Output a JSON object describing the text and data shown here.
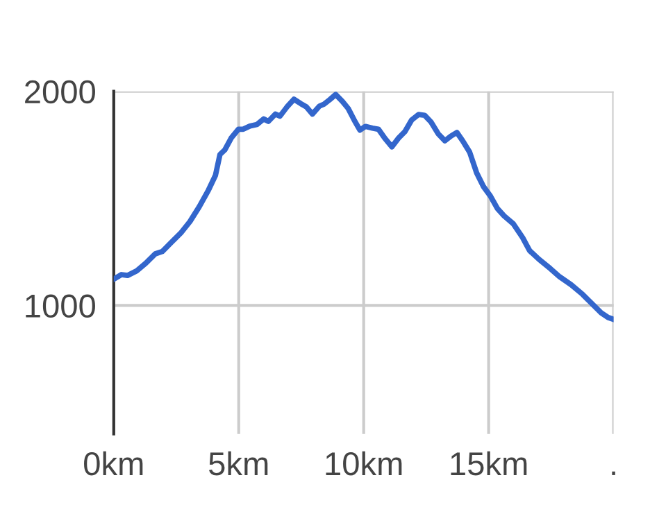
{
  "chart_data": {
    "type": "line",
    "x": [
      0,
      0.31,
      0.55,
      0.92,
      1.29,
      1.66,
      1.94,
      2.31,
      2.68,
      3.05,
      3.42,
      3.79,
      4.07,
      4.25,
      4.44,
      4.71,
      4.99,
      5.18,
      5.45,
      5.73,
      6.0,
      6.19,
      6.47,
      6.65,
      6.93,
      7.21,
      7.49,
      7.71,
      7.95,
      8.23,
      8.41,
      8.64,
      8.88,
      9.15,
      9.38,
      9.62,
      9.85,
      10.07,
      10.35,
      10.59,
      10.85,
      11.13,
      11.41,
      11.65,
      11.92,
      12.2,
      12.44,
      12.7,
      12.98,
      13.25,
      13.49,
      13.73,
      13.96,
      14.24,
      14.52,
      14.8,
      15.07,
      15.35,
      15.62,
      15.99,
      16.36,
      16.64,
      17.01,
      17.47,
      17.84,
      18.3,
      18.76,
      19.13,
      19.5,
      19.78,
      20
    ],
    "series": [
      {
        "color": "#3366cc",
        "values": [
          1123,
          1144,
          1140,
          1162,
          1198,
          1241,
          1252,
          1295,
          1338,
          1392,
          1461,
          1539,
          1608,
          1705,
          1726,
          1784,
          1823,
          1823,
          1838,
          1845,
          1871,
          1860,
          1894,
          1884,
          1927,
          1963,
          1942,
          1927,
          1894,
          1931,
          1940,
          1961,
          1985,
          1953,
          1920,
          1866,
          1819,
          1836,
          1828,
          1823,
          1780,
          1741,
          1784,
          1812,
          1866,
          1892,
          1888,
          1856,
          1802,
          1769,
          1791,
          1808,
          1769,
          1716,
          1619,
          1554,
          1511,
          1453,
          1418,
          1381,
          1317,
          1256,
          1216,
          1172,
          1134,
          1097,
          1052,
          1009,
          966,
          944,
          935
        ]
      }
    ],
    "xlim": [
      0,
      20
    ],
    "xticks": [
      {
        "value": 0,
        "label": "0km"
      },
      {
        "value": 5,
        "label": "5km"
      },
      {
        "value": 10,
        "label": "10km"
      },
      {
        "value": 15,
        "label": "15km"
      },
      {
        "value": 20,
        "label": "."
      }
    ],
    "ylim": [
      400,
      2000
    ],
    "yticks": [
      1000,
      2000
    ],
    "grid": true,
    "marker": "none",
    "line_style": "solid"
  }
}
